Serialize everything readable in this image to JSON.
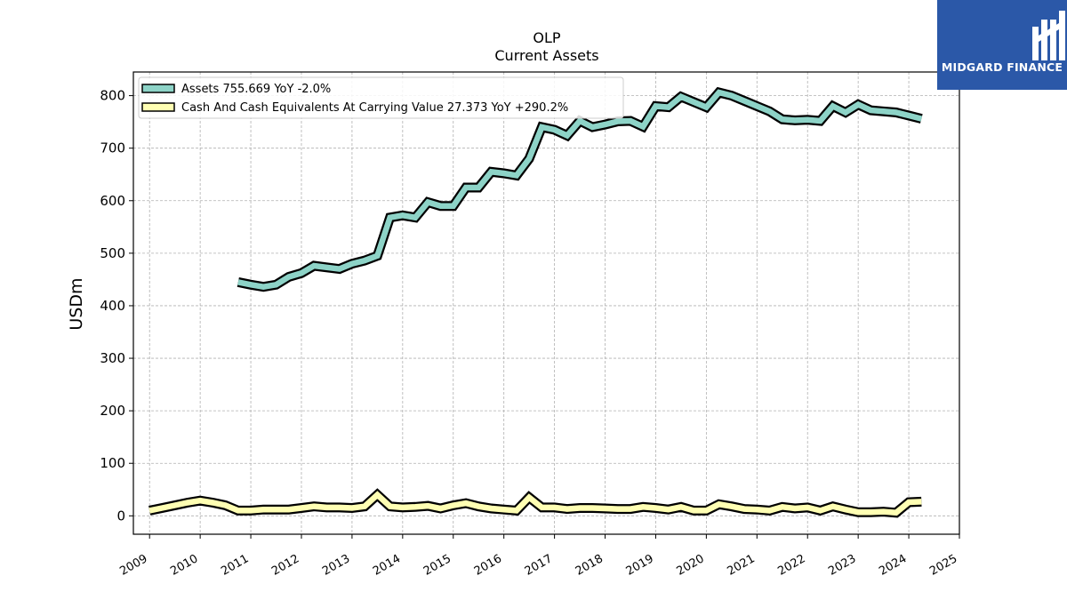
{
  "chart_data": {
    "type": "line",
    "title": "OLP",
    "subtitle": "Current  Assets",
    "ylabel": "USDm",
    "xlabel": "",
    "ylim": [
      -35,
      845
    ],
    "xlim": [
      2008.68,
      2025.0
    ],
    "grid": true,
    "legend_position": "top-left",
    "y_ticks": [
      0,
      100,
      200,
      300,
      400,
      500,
      600,
      700,
      800
    ],
    "x_ticks": [
      "2009",
      "2010",
      "2011",
      "2012",
      "2013",
      "2014",
      "2015",
      "2016",
      "2017",
      "2018",
      "2019",
      "2020",
      "2021",
      "2022",
      "2023",
      "2024",
      "2025"
    ],
    "series": [
      {
        "name": "Assets",
        "legend_label": "Assets  755.669 YoY -2.0%",
        "color": "#8dd3c7",
        "x": [
          2010.75,
          2011.0,
          2011.25,
          2011.5,
          2011.75,
          2012.0,
          2012.25,
          2012.5,
          2012.75,
          2013.0,
          2013.25,
          2013.5,
          2013.75,
          2014.0,
          2014.25,
          2014.5,
          2014.75,
          2015.0,
          2015.25,
          2015.5,
          2015.75,
          2016.0,
          2016.25,
          2016.5,
          2016.75,
          2017.0,
          2017.25,
          2017.5,
          2017.75,
          2018.0,
          2018.25,
          2018.5,
          2018.75,
          2019.0,
          2019.25,
          2019.5,
          2019.75,
          2020.0,
          2020.25,
          2020.5,
          2020.75,
          2021.0,
          2021.25,
          2021.5,
          2021.75,
          2022.0,
          2022.25,
          2022.5,
          2022.75,
          2023.0,
          2023.25,
          2023.5,
          2023.75,
          2024.0,
          2024.25
        ],
        "values": [
          445,
          440,
          436,
          440,
          455,
          462,
          476,
          473,
          470,
          480,
          486,
          495,
          568,
          572,
          568,
          597,
          590,
          590,
          625,
          625,
          655,
          652,
          648,
          680,
          740,
          735,
          724,
          752,
          740,
          745,
          751,
          752,
          741,
          780,
          778,
          798,
          788,
          778,
          806,
          800,
          790,
          780,
          770,
          755,
          753,
          754,
          752,
          780,
          768,
          783,
          772,
          770,
          768,
          762,
          756
        ]
      },
      {
        "name": "Cash And Cash Equivalents At Carrying Value",
        "legend_label": "Cash And Cash Equivalents At Carrying Value  27.373 YoY +290.2%",
        "color": "#ffffb3",
        "x": [
          2009.0,
          2009.25,
          2009.5,
          2009.75,
          2010.0,
          2010.25,
          2010.5,
          2010.75,
          2011.0,
          2011.25,
          2011.5,
          2011.75,
          2012.0,
          2012.25,
          2012.5,
          2012.75,
          2013.0,
          2013.25,
          2013.5,
          2013.75,
          2014.0,
          2014.25,
          2014.5,
          2014.75,
          2015.0,
          2015.25,
          2015.5,
          2015.75,
          2016.0,
          2016.25,
          2016.5,
          2016.75,
          2017.0,
          2017.25,
          2017.5,
          2017.75,
          2018.0,
          2018.25,
          2018.5,
          2018.75,
          2019.0,
          2019.25,
          2019.5,
          2019.75,
          2020.0,
          2020.25,
          2020.5,
          2020.75,
          2021.0,
          2021.25,
          2021.5,
          2021.75,
          2022.0,
          2022.25,
          2022.5,
          2022.75,
          2023.0,
          2023.25,
          2023.5,
          2023.75,
          2024.0,
          2024.25
        ],
        "values": [
          10,
          15,
          20,
          25,
          29,
          25,
          20,
          10,
          10,
          12,
          12,
          12,
          15,
          18,
          16,
          16,
          15,
          18,
          40,
          18,
          16,
          17,
          19,
          14,
          20,
          24,
          18,
          14,
          12,
          10,
          35,
          16,
          16,
          13,
          15,
          15,
          14,
          13,
          13,
          17,
          15,
          12,
          17,
          10,
          10,
          22,
          18,
          13,
          12,
          10,
          17,
          14,
          16,
          10,
          18,
          12,
          7,
          7,
          8,
          6,
          26,
          27
        ]
      }
    ]
  },
  "logo": {
    "text": "MIDGARD FINANCE",
    "background": "#2b58a8"
  }
}
